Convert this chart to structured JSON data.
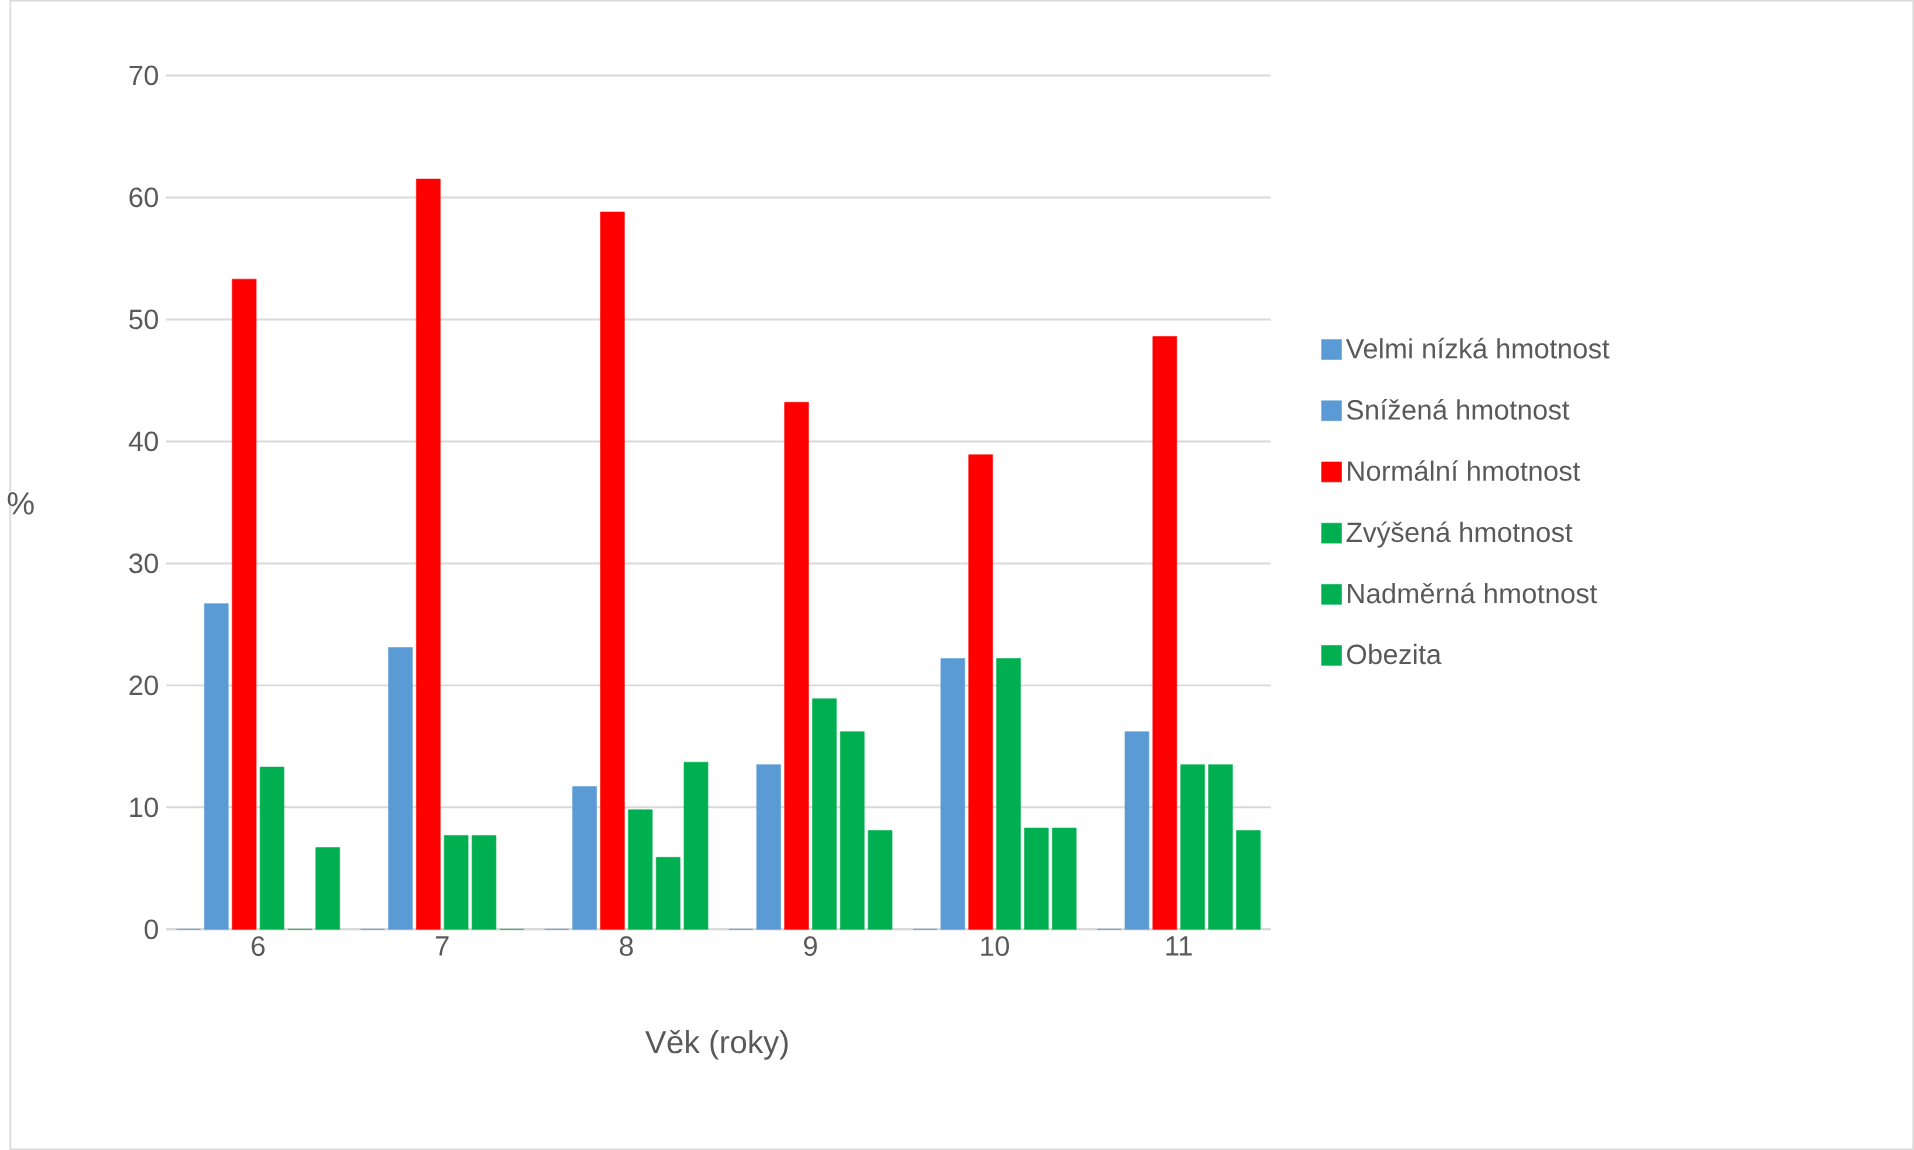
{
  "chart_data": {
    "type": "bar",
    "xlabel": "Věk (roky)",
    "ylabel": "%",
    "categories": [
      "6",
      "7",
      "8",
      "9",
      "10",
      "11"
    ],
    "ylim": [
      0,
      70
    ],
    "yticks": [
      0,
      10,
      20,
      30,
      40,
      50,
      60,
      70
    ],
    "grid": "y",
    "legend": "right",
    "series": [
      {
        "name": "Velmi nízká hmotnost",
        "color": "#5b9bd5",
        "values": [
          0,
          0,
          0,
          0,
          0,
          0
        ]
      },
      {
        "name": "Snížená hmotnost",
        "color": "#5b9bd5",
        "values": [
          26.7,
          23.1,
          11.7,
          13.5,
          22.2,
          16.2
        ]
      },
      {
        "name": "Normální hmotnost",
        "color": "#ff0000",
        "values": [
          53.3,
          61.5,
          58.8,
          43.2,
          38.9,
          48.6
        ]
      },
      {
        "name": "Zvýšená hmotnost",
        "color": "#00b050",
        "values": [
          13.3,
          7.7,
          9.8,
          18.9,
          22.2,
          13.5
        ]
      },
      {
        "name": "Nadměrná hmotnost",
        "color": "#00b050",
        "values": [
          0,
          7.7,
          5.9,
          16.2,
          8.3,
          13.5
        ]
      },
      {
        "name": "Obezita",
        "color": "#00b050",
        "values": [
          6.7,
          0,
          13.7,
          8.1,
          8.3,
          8.1
        ]
      }
    ]
  }
}
